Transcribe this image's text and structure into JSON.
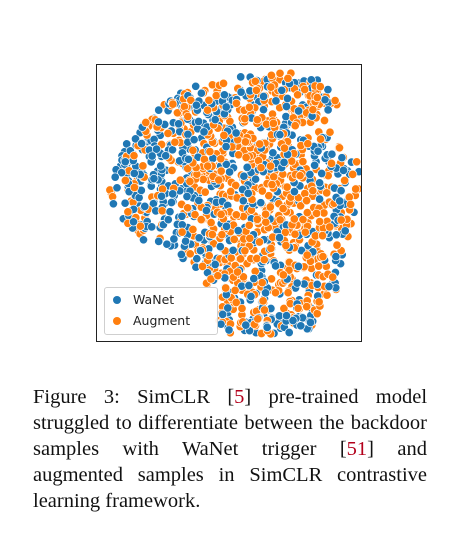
{
  "figure": {
    "chart_data": {
      "type": "scatter",
      "title": "",
      "xlabel": "",
      "ylabel": "",
      "grid": false,
      "legend_position": "bottom-left",
      "series": [
        {
          "name": "WaNet",
          "color": "#1f77b4"
        },
        {
          "name": "Augment",
          "color": "#ff7f0e"
        }
      ]
    }
  },
  "caption": {
    "label": "Figure 3:",
    "t1": "SimCLR [",
    "c1": "5",
    "t2": "] pre-trained model struggled to differentiate between the backdoor samples with WaNet trigger [",
    "c2": "51",
    "t3": "] and augmented samples in SimCLR contrastive learning framework."
  }
}
